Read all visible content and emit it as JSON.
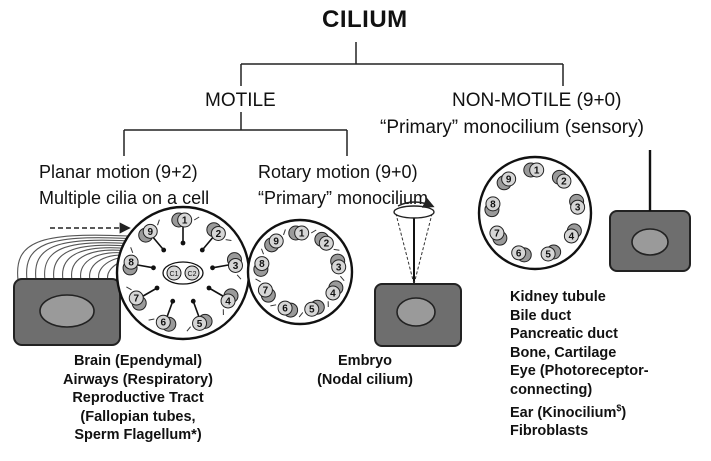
{
  "title": "CILIUM",
  "branches": {
    "motile": {
      "label": "MOTILE",
      "planar": {
        "line1": "Planar motion (9+2)",
        "line2": "Multiple cilia on a cell",
        "locations": [
          "Brain (Ependymal)",
          "Airways (Respiratory)",
          "Reproductive Tract",
          "(Fallopian tubes,",
          "Sperm Flagellum*)"
        ]
      },
      "rotary": {
        "line1": "Rotary motion (9+0)",
        "line2": "“Primary” monocilium",
        "locations": [
          "Embryo",
          "(Nodal cilium)"
        ]
      }
    },
    "non_motile": {
      "label": "NON-MOTILE (9+0)",
      "subtitle": "“Primary” monocilium (sensory)",
      "locations": [
        "Kidney tubule",
        "Bile duct",
        "Pancreatic duct",
        "Bone, Cartilage",
        "Eye (Photoreceptor-",
        "connecting)",
        "Ear (Kinocilium",
        "Fibroblasts"
      ],
      "ear_superscript": "$",
      "ear_suffix": ")"
    }
  },
  "doublet_numbers": [
    "1",
    "2",
    "3",
    "4",
    "5",
    "6",
    "7",
    "8",
    "9"
  ]
}
